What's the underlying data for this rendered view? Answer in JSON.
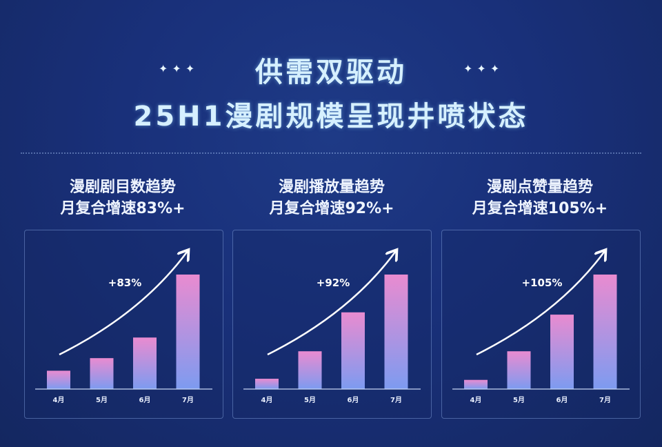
{
  "header": {
    "title": "供需双驱动",
    "subtitle": "25H1漫剧规模呈现井喷状态",
    "stars": "✦✦✦"
  },
  "colors": {
    "bar_top": "#e98bd0",
    "bar_bottom": "#7d9bf0",
    "background": "#19307a"
  },
  "chart_data": [
    {
      "type": "bar",
      "title": "漫剧剧目数趋势",
      "subtitle": "月复合增速83%+",
      "categories": [
        "4月",
        "5月",
        "6月",
        "7月"
      ],
      "values": [
        16,
        27,
        45,
        100
      ],
      "annotation": "+83%",
      "value_note": "relative bar heights, no y-axis printed"
    },
    {
      "type": "bar",
      "title": "漫剧播放量趋势",
      "subtitle": "月复合增速92%+",
      "categories": [
        "4月",
        "5月",
        "6月",
        "7月"
      ],
      "values": [
        9,
        33,
        67,
        100
      ],
      "annotation": "+92%"
    },
    {
      "type": "bar",
      "title": "漫剧点赞量趋势",
      "subtitle": "月复合增速105%+",
      "categories": [
        "4月",
        "5月",
        "6月",
        "7月"
      ],
      "values": [
        8,
        33,
        65,
        100
      ],
      "annotation": "+105%"
    }
  ]
}
